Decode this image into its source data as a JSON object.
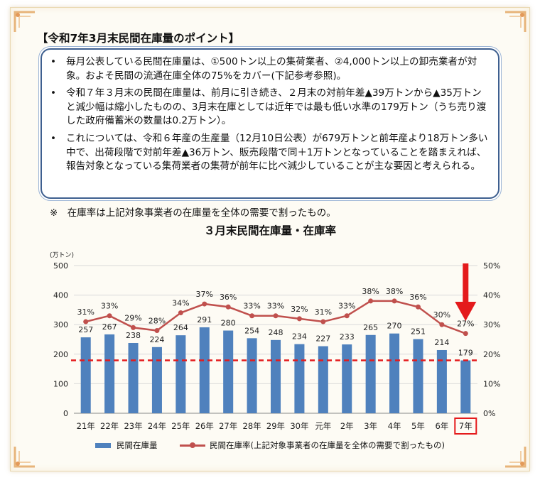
{
  "heading": "【令和7年3月末民間在庫量のポイント】",
  "bullets": [
    "毎月公表している民間在庫量は、①500トン以上の集荷業者、②4,000トン以上の卸売業者が対象。およそ民間の流通在庫全体の75%をカバー(下記参考参照)。",
    "令和７年３月末の民間在庫量は、前月に引き続き、２月末の対前年差▲39万トンから▲35万トンと減少幅は縮小したものの、3月末在庫としては近年では最も低い水準の179万トン（うち売り渡した政府備蓄米の数量は0.2万トン）。",
    "これについては、令和６年産の生産量（12月10日公表）が679万トンと前年産より18万トン多い中で、出荷段階で対前年差▲36万トン、販売段階で同＋1万トンとなっていることを踏まえれば、報告対象となっている集荷業者の集荷が前年に比べ減少していることが主な要因と考えられる。"
  ],
  "footnote": "※　在庫率は上記対象事業者の在庫量を全体の需要で割ったもの。",
  "chart_data": {
    "type": "bar",
    "title": "３月末民間在庫量・在庫率",
    "ylabel": "(万トン)",
    "categories": [
      "21年",
      "22年",
      "23年",
      "24年",
      "25年",
      "26年",
      "27年",
      "28年",
      "29年",
      "30年",
      "元年",
      "2年",
      "3年",
      "4年",
      "5年",
      "6年",
      "7年"
    ],
    "series": [
      {
        "name": "民間在庫量",
        "type": "bar",
        "axis": "left",
        "color": "#4f81bd",
        "values": [
          257,
          267,
          238,
          224,
          264,
          291,
          280,
          254,
          248,
          234,
          227,
          233,
          265,
          270,
          251,
          214,
          179
        ]
      },
      {
        "name": "民間在庫率(上記対象事業者の在庫量を全体の需要で割ったもの)",
        "type": "line",
        "axis": "right",
        "color": "#c0504d",
        "values": [
          31,
          33,
          29,
          28,
          34,
          37,
          36,
          33,
          33,
          32,
          31,
          33,
          38,
          38,
          36,
          30,
          27
        ]
      }
    ],
    "left_axis": {
      "min": 0,
      "max": 500,
      "ticks": [
        "0",
        "100",
        "200",
        "300",
        "400",
        "500"
      ]
    },
    "right_axis": {
      "min": 0,
      "max": 50,
      "ticks": [
        "0%",
        "10%",
        "20%",
        "30%",
        "40%",
        "50%"
      ]
    },
    "reference_line": {
      "value": 179,
      "style": "dashed",
      "color": "#e41a1c"
    },
    "highlight": {
      "category": "7年",
      "color": "#e41a1c"
    },
    "grid": true,
    "legend": "bottom"
  }
}
